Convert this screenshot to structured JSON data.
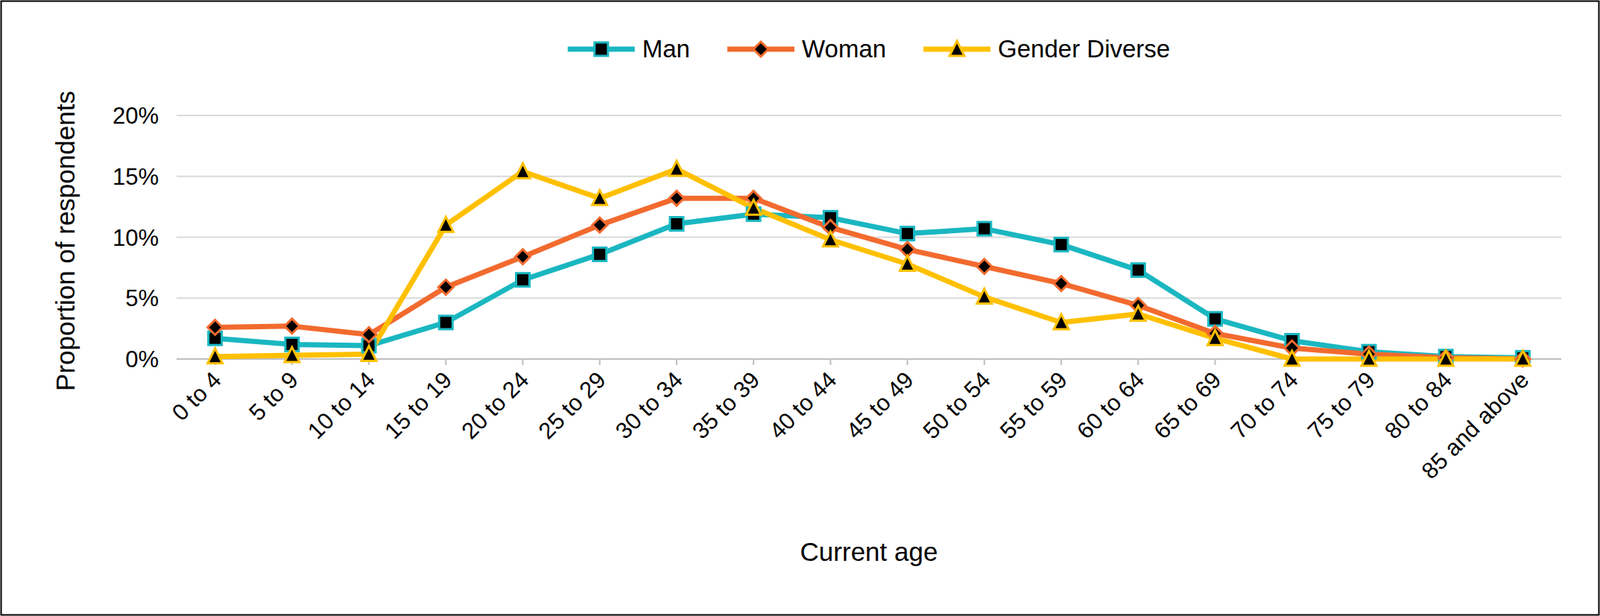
{
  "chart_data": {
    "type": "line",
    "x_label": "Current age",
    "y_label": "Proportion of respondents",
    "categories": [
      "0 to 4",
      "5 to 9",
      "10 to 14",
      "15 to 19",
      "20 to 24",
      "25 to 29",
      "30 to 34",
      "35 to 39",
      "40 to 44",
      "45 to 49",
      "50 to 54",
      "55 to 59",
      "60 to 64",
      "65 to 69",
      "70 to 74",
      "75 to 79",
      "80 to 84",
      "85 and above"
    ],
    "series": [
      {
        "name": "Man",
        "color": "#1ab7c1",
        "marker": "square",
        "values": [
          1.7,
          1.2,
          1.1,
          3.0,
          6.5,
          8.6,
          11.1,
          11.9,
          11.6,
          10.3,
          10.7,
          9.4,
          7.3,
          3.3,
          1.5,
          0.6,
          0.2,
          0.1
        ]
      },
      {
        "name": "Woman",
        "color": "#f26a2e",
        "marker": "diamond",
        "values": [
          2.6,
          2.7,
          2.0,
          5.9,
          8.4,
          11.0,
          13.2,
          13.2,
          10.8,
          9.0,
          7.6,
          6.2,
          4.4,
          2.1,
          0.9,
          0.4,
          0.1,
          0.0
        ]
      },
      {
        "name": "Gender Diverse",
        "color": "#ffc000",
        "marker": "triangle",
        "values": [
          0.2,
          0.3,
          0.4,
          11.0,
          15.4,
          13.2,
          15.6,
          12.4,
          9.8,
          7.8,
          5.1,
          3.0,
          3.7,
          1.7,
          0.0,
          0.0,
          0.0,
          0.0
        ]
      }
    ],
    "ylim": [
      0,
      20
    ],
    "yticks": [
      {
        "value": 0,
        "label": "0%"
      },
      {
        "value": 5,
        "label": "5%"
      },
      {
        "value": 10,
        "label": "10%"
      },
      {
        "value": 15,
        "label": "15%"
      },
      {
        "value": 20,
        "label": "20%"
      }
    ],
    "grid": true,
    "legend": "top"
  }
}
